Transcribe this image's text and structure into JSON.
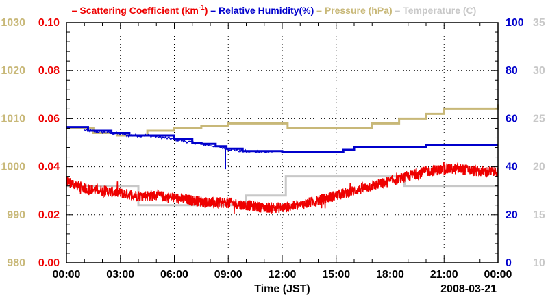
{
  "chart_data": {
    "type": "line",
    "title": "",
    "date_label": "2008-03-21",
    "xlabel": "Time (JST)",
    "x_unit": "hours",
    "xlim": [
      0,
      24
    ],
    "x_ticks": [
      {
        "v": 0,
        "label": "00:00"
      },
      {
        "v": 3,
        "label": "03:00"
      },
      {
        "v": 6,
        "label": "06:00"
      },
      {
        "v": 9,
        "label": "09:00"
      },
      {
        "v": 12,
        "label": "12:00"
      },
      {
        "v": 15,
        "label": "15:00"
      },
      {
        "v": 18,
        "label": "18:00"
      },
      {
        "v": 21,
        "label": "21:00"
      },
      {
        "v": 24,
        "label": "00:00"
      }
    ],
    "grid": true,
    "axes": {
      "pressure": {
        "side": "outer-left",
        "color": "#c8b878",
        "lim": [
          980,
          1030
        ],
        "ticks": [
          {
            "v": 980,
            "label": "980"
          },
          {
            "v": 990,
            "label": "990"
          },
          {
            "v": 1000,
            "label": "1000"
          },
          {
            "v": 1010,
            "label": "1010"
          },
          {
            "v": 1020,
            "label": "1020"
          },
          {
            "v": 1030,
            "label": "1030"
          }
        ]
      },
      "scattering": {
        "side": "left",
        "color": "#ee0000",
        "lim": [
          0,
          0.1
        ],
        "ticks": [
          {
            "v": 0,
            "label": "0.00"
          },
          {
            "v": 0.02,
            "label": "0.02"
          },
          {
            "v": 0.04,
            "label": "0.04"
          },
          {
            "v": 0.06,
            "label": "0.06"
          },
          {
            "v": 0.08,
            "label": "0.08"
          },
          {
            "v": 0.1,
            "label": "0.10"
          }
        ]
      },
      "humidity": {
        "side": "right",
        "color": "#0000cc",
        "lim": [
          0,
          100
        ],
        "ticks": [
          {
            "v": 0,
            "label": "0"
          },
          {
            "v": 20,
            "label": "20"
          },
          {
            "v": 40,
            "label": "40"
          },
          {
            "v": 60,
            "label": "60"
          },
          {
            "v": 80,
            "label": "80"
          },
          {
            "v": 100,
            "label": "100"
          }
        ]
      },
      "temperature": {
        "side": "outer-right",
        "color": "#c8c8c8",
        "lim": [
          10,
          35
        ],
        "ticks": [
          {
            "v": 10,
            "label": "10"
          },
          {
            "v": 15,
            "label": "15"
          },
          {
            "v": 20,
            "label": "20"
          },
          {
            "v": 25,
            "label": "25"
          },
          {
            "v": 30,
            "label": "30"
          },
          {
            "v": 35,
            "label": "35"
          }
        ]
      }
    },
    "legend": {
      "placement": "top",
      "entries": [
        {
          "name": "Scattering Coefficient",
          "unit_prefix": "(km",
          "unit_sup": "-1",
          "unit_suffix": ")",
          "color": "#ee0000"
        },
        {
          "name": "Relative Humidity(%)",
          "color": "#0000cc"
        },
        {
          "name": "Pressure (hPa)",
          "color": "#c8b878"
        },
        {
          "name": "Temperature (C)",
          "color": "#c8c8c8"
        }
      ]
    },
    "series": [
      {
        "name": "Scattering Coefficient",
        "axis": "scattering",
        "color": "#ee0000",
        "style": "noisy",
        "x": [
          0,
          1,
          2,
          3,
          4,
          5,
          6,
          7,
          8,
          9,
          10,
          10.5,
          11,
          12,
          13,
          14,
          15,
          16,
          17,
          18,
          19,
          20,
          21,
          22,
          23,
          24
        ],
        "values": [
          0.034,
          0.031,
          0.03,
          0.029,
          0.028,
          0.028,
          0.027,
          0.026,
          0.025,
          0.025,
          0.024,
          0.0235,
          0.023,
          0.023,
          0.024,
          0.026,
          0.028,
          0.03,
          0.032,
          0.034,
          0.036,
          0.038,
          0.039,
          0.039,
          0.038,
          0.038
        ]
      },
      {
        "name": "Relative Humidity(%)",
        "axis": "humidity",
        "color": "#0000cc",
        "style": "step",
        "x": [
          0,
          1.2,
          2.5,
          3.5,
          4.5,
          6.0,
          7.0,
          7.5,
          8.3,
          8.9,
          9.8,
          12.0,
          14.0,
          15.4,
          16.0,
          18.0,
          19.0,
          20.0,
          21.0,
          24.0
        ],
        "values": [
          56.5,
          55,
          54,
          53,
          53,
          51.5,
          50,
          49.5,
          48.5,
          47.5,
          46.5,
          46,
          46,
          47,
          48,
          48,
          48,
          49,
          49,
          49
        ]
      },
      {
        "name": "Pressure (hPa)",
        "axis": "pressure",
        "color": "#c8b878",
        "style": "step",
        "x": [
          0,
          1.5,
          2.8,
          4.5,
          6.0,
          7.5,
          9.0,
          10.0,
          11.5,
          12.3,
          15.5,
          17.0,
          18.5,
          20.0,
          21.0,
          24.0
        ],
        "values": [
          1008,
          1007,
          1006.5,
          1007.5,
          1008,
          1008.5,
          1009,
          1009,
          1009,
          1008,
          1008,
          1009,
          1010,
          1011,
          1012,
          1013
        ]
      },
      {
        "name": "Temperature (C)",
        "axis": "temperature",
        "color": "#c8c8c8",
        "style": "step",
        "x": [
          0,
          4.0,
          10.0,
          12.2,
          18.8,
          24.0
        ],
        "values": [
          18,
          16,
          17,
          19,
          18,
          18
        ]
      }
    ]
  }
}
